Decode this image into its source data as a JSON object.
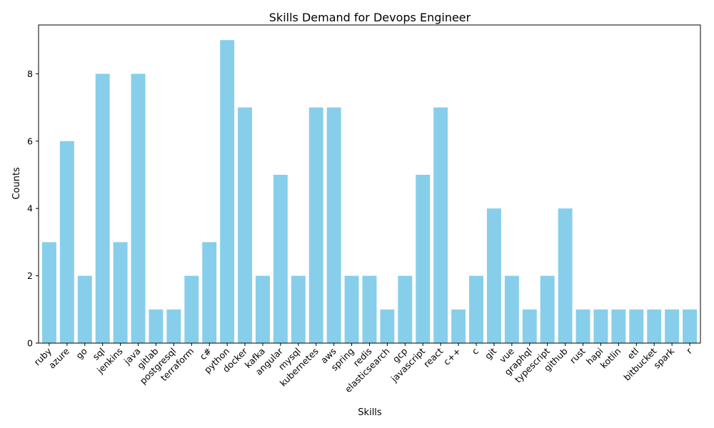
{
  "chart_data": {
    "type": "bar",
    "title": "Skills Demand for Devops Engineer",
    "xlabel": "Skills",
    "ylabel": "Counts",
    "ylim": [
      0,
      9.45
    ],
    "yticks": [
      0,
      2,
      4,
      6,
      8
    ],
    "bar_color": "#87ceeb",
    "grid": false,
    "categories": [
      "ruby",
      "azure",
      "go",
      "sql",
      "jenkins",
      "java",
      "gitlab",
      "postgresql",
      "terraform",
      "c#",
      "python",
      "docker",
      "kafka",
      "angular",
      "mysql",
      "kubernetes",
      "aws",
      "spring",
      "redis",
      "elasticsearch",
      "gcp",
      "javascript",
      "react",
      "c++",
      "c",
      "git",
      "vue",
      "graphql",
      "typescript",
      "github",
      "rust",
      "hapi",
      "kotlin",
      "etl",
      "bitbucket",
      "spark",
      "r"
    ],
    "values": [
      3,
      6,
      2,
      8,
      3,
      8,
      1,
      1,
      2,
      3,
      9,
      7,
      2,
      5,
      2,
      7,
      7,
      2,
      2,
      1,
      2,
      5,
      7,
      1,
      2,
      4,
      2,
      1,
      2,
      4,
      1,
      1,
      1,
      1,
      1,
      1,
      1
    ]
  }
}
